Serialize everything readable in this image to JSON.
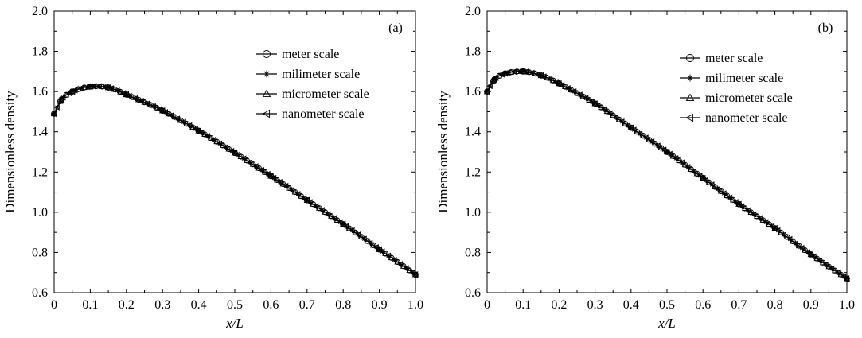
{
  "chart_data": [
    {
      "type": "line",
      "panel_label": "(a)",
      "xlabel": "x/L",
      "ylabel": "Dimensionless density",
      "xlim": [
        0,
        1.0
      ],
      "ylim": [
        0.6,
        2.0
      ],
      "x_ticks": [
        "0",
        "0.1",
        "0.2",
        "0.3",
        "0.4",
        "0.5",
        "0.6",
        "0.7",
        "0.8",
        "0.9",
        "1.0"
      ],
      "y_ticks": [
        "0.6",
        "0.8",
        "1.0",
        "1.2",
        "1.4",
        "1.6",
        "1.8",
        "2.0"
      ],
      "legend_position": "top-right",
      "x": [
        0,
        0.02,
        0.05,
        0.1,
        0.15,
        0.2,
        0.3,
        0.4,
        0.5,
        0.6,
        0.7,
        0.8,
        0.9,
        1.0
      ],
      "series": [
        {
          "name": "meter scale",
          "marker": "circle",
          "values": [
            1.49,
            1.56,
            1.6,
            1.625,
            1.62,
            1.585,
            1.505,
            1.405,
            1.295,
            1.18,
            1.06,
            0.94,
            0.815,
            0.69
          ]
        },
        {
          "name": "milimeter scale",
          "marker": "star",
          "values": [
            1.49,
            1.56,
            1.6,
            1.625,
            1.62,
            1.585,
            1.505,
            1.405,
            1.295,
            1.18,
            1.06,
            0.94,
            0.815,
            0.69
          ]
        },
        {
          "name": "micrometer scale",
          "marker": "triangle",
          "values": [
            1.49,
            1.56,
            1.6,
            1.625,
            1.62,
            1.585,
            1.505,
            1.405,
            1.295,
            1.18,
            1.06,
            0.94,
            0.815,
            0.69
          ]
        },
        {
          "name": "nanometer scale",
          "marker": "left-triangle",
          "values": [
            1.49,
            1.56,
            1.6,
            1.625,
            1.62,
            1.585,
            1.505,
            1.405,
            1.295,
            1.18,
            1.06,
            0.94,
            0.815,
            0.69
          ]
        }
      ]
    },
    {
      "type": "line",
      "panel_label": "(b)",
      "xlabel": "x/L",
      "ylabel": "Dimensionless density",
      "xlim": [
        0,
        1.0
      ],
      "ylim": [
        0.6,
        2.0
      ],
      "x_ticks": [
        "0",
        "0.1",
        "0.2",
        "0.3",
        "0.4",
        "0.5",
        "0.6",
        "0.7",
        "0.8",
        "0.9",
        "1.0"
      ],
      "y_ticks": [
        "0.6",
        "0.8",
        "1.0",
        "1.2",
        "1.4",
        "1.6",
        "1.8",
        "2.0"
      ],
      "legend_position": "top-right",
      "x": [
        0,
        0.02,
        0.05,
        0.1,
        0.15,
        0.2,
        0.3,
        0.4,
        0.5,
        0.6,
        0.7,
        0.8,
        0.9,
        1.0
      ],
      "series": [
        {
          "name": "meter scale",
          "marker": "circle",
          "values": [
            1.6,
            1.66,
            1.69,
            1.7,
            1.68,
            1.64,
            1.54,
            1.42,
            1.3,
            1.17,
            1.04,
            0.92,
            0.79,
            0.67
          ]
        },
        {
          "name": "milimeter scale",
          "marker": "star",
          "values": [
            1.6,
            1.66,
            1.69,
            1.7,
            1.68,
            1.64,
            1.54,
            1.42,
            1.3,
            1.17,
            1.04,
            0.92,
            0.79,
            0.67
          ]
        },
        {
          "name": "micrometer scale",
          "marker": "triangle",
          "values": [
            1.6,
            1.66,
            1.69,
            1.7,
            1.68,
            1.64,
            1.54,
            1.42,
            1.3,
            1.17,
            1.04,
            0.92,
            0.79,
            0.67
          ]
        },
        {
          "name": "nanometer scale",
          "marker": "left-triangle",
          "values": [
            1.6,
            1.66,
            1.69,
            1.7,
            1.68,
            1.64,
            1.54,
            1.42,
            1.3,
            1.17,
            1.04,
            0.92,
            0.79,
            0.67
          ]
        }
      ]
    }
  ]
}
